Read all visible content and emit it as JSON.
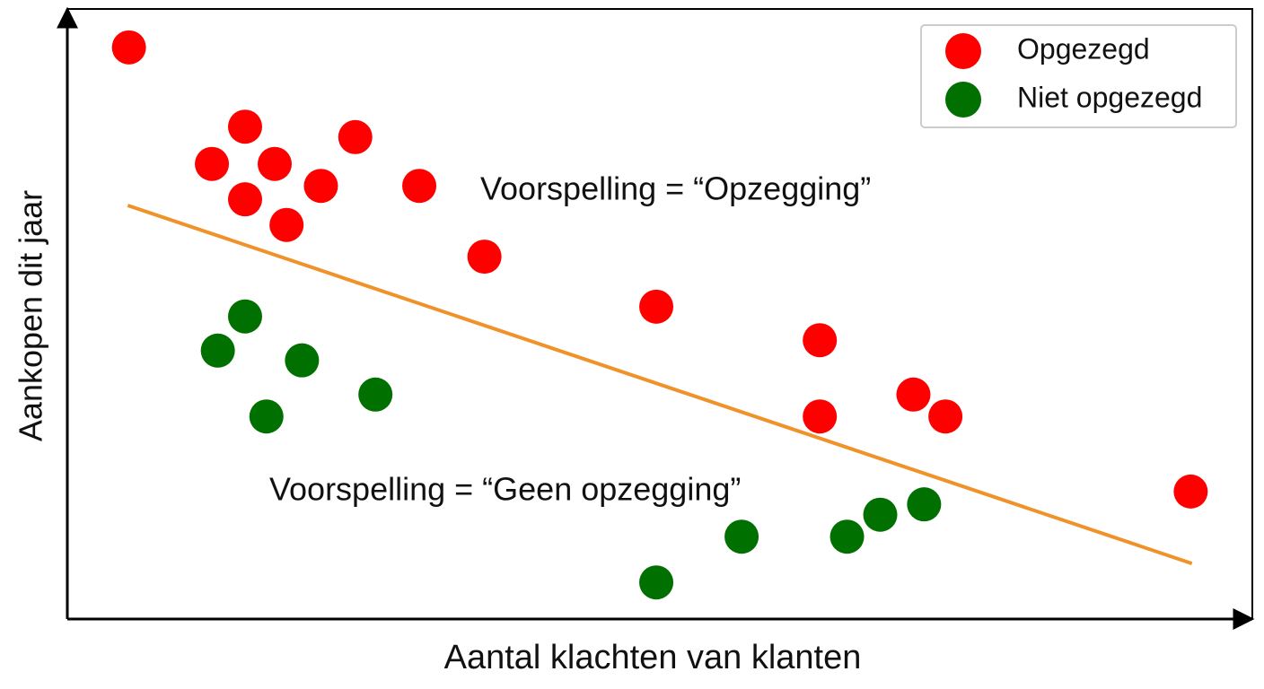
{
  "chart_data": {
    "type": "scatter",
    "xlabel": "Aantal klachten van klanten",
    "ylabel": "Aankopen dit jaar",
    "xlim": [
      0,
      100
    ],
    "ylim": [
      0,
      100
    ],
    "legend": "upper right",
    "series": [
      {
        "name": "Opgezegd",
        "color": "#ff0000",
        "x": [
          5.2,
          15.0,
          12.2,
          17.5,
          24.3,
          21.4,
          15.0,
          29.7,
          18.5,
          35.2,
          49.7,
          63.5,
          63.5,
          71.4,
          74.1,
          94.8
        ],
        "values": [
          93.7,
          80.7,
          74.6,
          74.6,
          79.0,
          71.0,
          68.8,
          71.0,
          64.6,
          59.4,
          51.2,
          45.7,
          33.2,
          36.8,
          33.2,
          20.9
        ]
      },
      {
        "name": "Niet opgezegd",
        "color": "#007000",
        "x": [
          15.0,
          12.7,
          19.8,
          26.0,
          16.8,
          56.9,
          65.8,
          68.6,
          72.3,
          49.7
        ],
        "values": [
          49.6,
          44.0,
          42.4,
          36.8,
          33.2,
          13.5,
          13.5,
          17.1,
          18.8,
          6.0
        ]
      }
    ],
    "boundary": {
      "x": [
        5.1,
        94.9
      ],
      "values": [
        67.8,
        9.1
      ],
      "color": "#f0922a"
    },
    "annotations": [
      "Voorspelling = “Opzegging”",
      "Voorspelling = “Geen opzegging”"
    ]
  }
}
